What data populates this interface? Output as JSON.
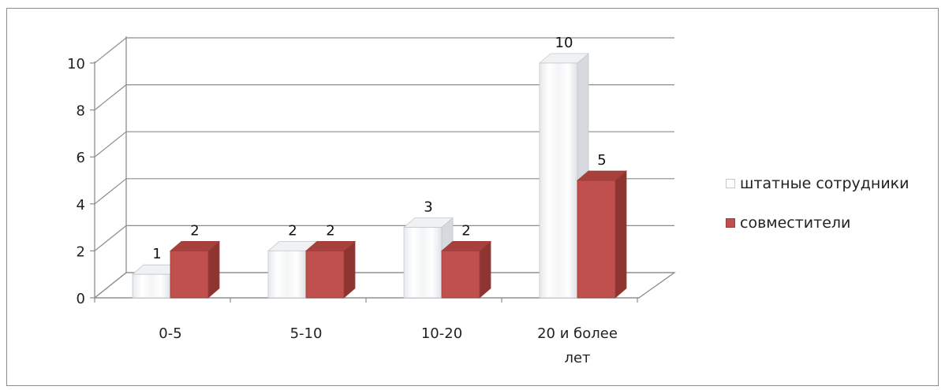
{
  "chart_data": {
    "type": "bar",
    "title": "",
    "xlabel": "",
    "ylabel": "",
    "categories": [
      "0-5",
      "5-10",
      "10-20",
      "20 и более лет"
    ],
    "series": [
      {
        "name": "штатные сотрудники",
        "values": [
          1,
          2,
          3,
          10
        ],
        "color": "#ffffff"
      },
      {
        "name": "совместители",
        "values": [
          2,
          2,
          2,
          5
        ],
        "color": "#c0504d"
      }
    ],
    "ylim": [
      0,
      10
    ],
    "yticks": [
      0,
      2,
      4,
      6,
      8,
      10
    ],
    "grid": true,
    "legend_position": "right",
    "data_labels": true,
    "style": "3d-column"
  }
}
